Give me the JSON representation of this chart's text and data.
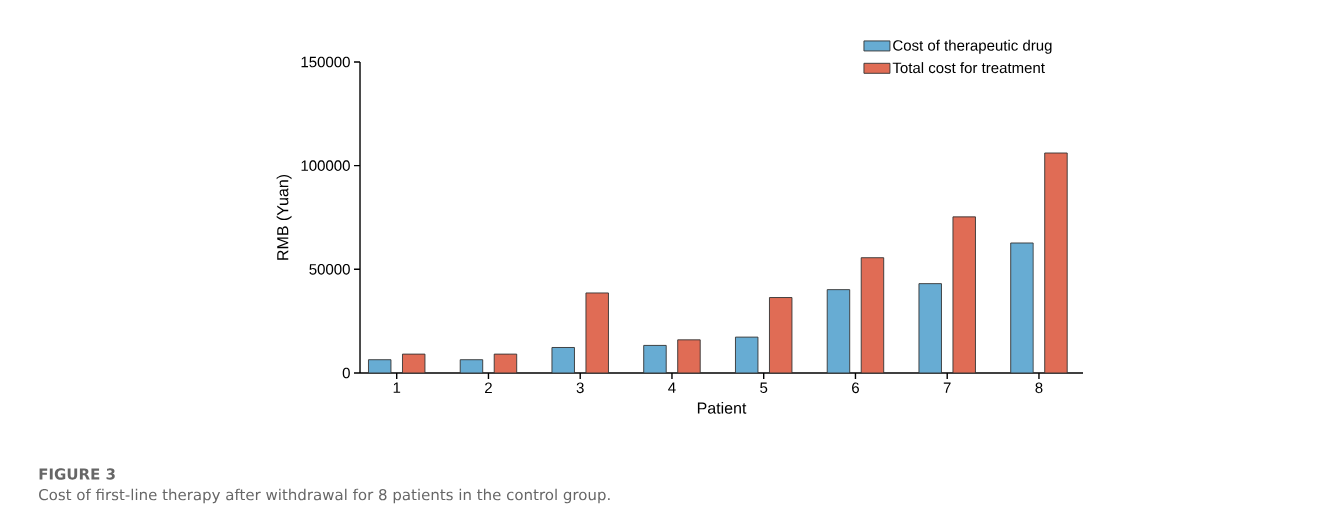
{
  "chart_data": {
    "type": "bar",
    "xlabel": "Patient",
    "ylabel": "RMB (Yuan)",
    "categories": [
      "1",
      "2",
      "3",
      "4",
      "5",
      "6",
      "7",
      "8"
    ],
    "series": [
      {
        "name": "Cost of therapeutic drug",
        "color": "#67acd3",
        "values": [
          6400,
          6400,
          12300,
          13300,
          17300,
          40200,
          43100,
          62700
        ]
      },
      {
        "name": "Total cost for treatment",
        "color": "#e06c55",
        "values": [
          9100,
          9100,
          38600,
          16000,
          36400,
          55600,
          75300,
          106100
        ]
      }
    ],
    "ylim": [
      0,
      150000
    ],
    "yticks": [
      0,
      50000,
      100000,
      150000
    ],
    "grid": false,
    "legend": "top right",
    "annotations": [
      "FIGURE 3",
      "Cost of first-line therapy after withdrawal for 8 patients in the control group."
    ]
  }
}
